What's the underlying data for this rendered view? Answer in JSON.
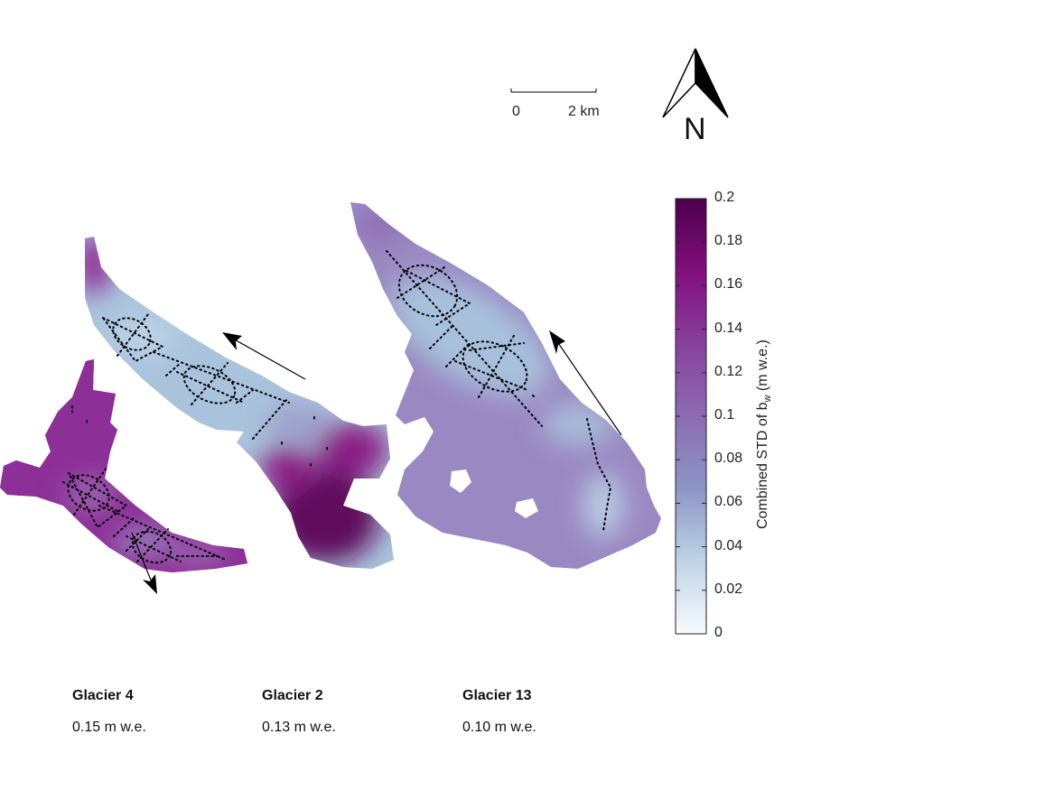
{
  "scale_bar": {
    "start_label": "0",
    "end_label": "2 km"
  },
  "north_arrow": {
    "label": "N"
  },
  "colorbar": {
    "title_prefix": "Combined STD of b",
    "title_sub": "w",
    "title_suffix": " (m w.e.)",
    "min": 0,
    "max": 0.2,
    "ticks": [
      "0",
      "0.02",
      "0.04",
      "0.06",
      "0.08",
      "0.1",
      "0.12",
      "0.14",
      "0.16",
      "0.18",
      "0.2"
    ],
    "colors": [
      "#f7fcfd",
      "#bfd3e6",
      "#8c96c6",
      "#8c6bb1",
      "#88419d",
      "#810f7c",
      "#4d004b"
    ]
  },
  "glaciers": [
    {
      "name": "Glacier 4",
      "value_label": "0.15 m w.e."
    },
    {
      "name": "Glacier 2",
      "value_label": "0.13 m w.e."
    },
    {
      "name": "Glacier 13",
      "value_label": "0.10 m w.e."
    }
  ]
}
